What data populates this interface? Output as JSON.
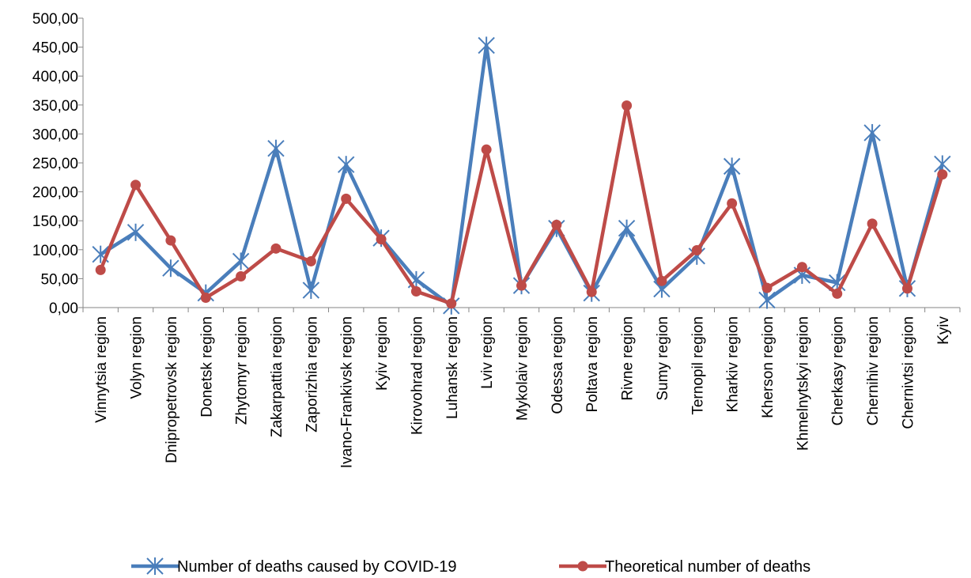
{
  "chart_data": {
    "type": "line",
    "title": "",
    "xlabel": "",
    "ylabel": "",
    "ylim": [
      0,
      500
    ],
    "y_ticks": [
      "0,00",
      "50,00",
      "100,00",
      "150,00",
      "200,00",
      "250,00",
      "300,00",
      "350,00",
      "400,00",
      "450,00",
      "500,00"
    ],
    "grid": false,
    "legend_position": "bottom",
    "categories": [
      "Vinnytsia region",
      "Volyn region",
      "Dnipropetrovsk region",
      "Donetsk region",
      "Zhytomyr region",
      "Zakarpattia region",
      "Zaporizhia region",
      "Ivano-Frankivsk region",
      "Kyiv region",
      "Kirovohrad region",
      "Luhansk region",
      "Lviv region",
      "Mykolaiv region",
      "Odessa region",
      "Poltava region",
      "Rivne region",
      "Sumy region",
      "Ternopil region",
      "Kharkiv region",
      "Kherson region",
      "Khmelnytskyi region",
      "Cherkasy region",
      "Chernihiv region",
      "Chernivtsi region",
      "Kyiv"
    ],
    "series": [
      {
        "name": "Number of deaths caused by COVID-19",
        "color": "#4a7ebb",
        "marker": "star",
        "values": [
          92,
          130,
          68,
          25,
          80,
          275,
          30,
          247,
          120,
          48,
          3,
          453,
          38,
          137,
          25,
          137,
          32,
          89,
          244,
          13,
          56,
          43,
          302,
          33,
          248
        ]
      },
      {
        "name": "Theoretical number of deaths",
        "color": "#be4b48",
        "marker": "circle",
        "values": [
          65,
          212,
          116,
          17,
          54,
          102,
          80,
          188,
          118,
          28,
          7,
          273,
          38,
          143,
          27,
          349,
          46,
          99,
          180,
          34,
          70,
          24,
          145,
          33,
          230
        ]
      }
    ]
  }
}
